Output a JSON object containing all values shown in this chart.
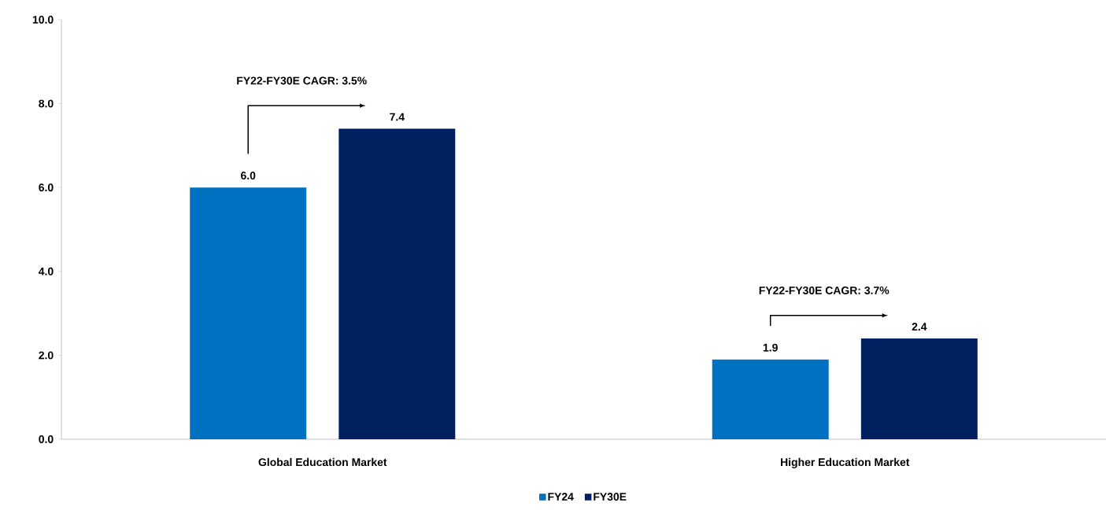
{
  "chart_data": {
    "type": "bar",
    "categories": [
      "Global Education Market",
      "Higher Education Market"
    ],
    "series": [
      {
        "name": "FY24",
        "color": "#0070c0",
        "values": [
          6.0,
          1.9
        ],
        "value_labels": [
          "6.0",
          "1.9"
        ]
      },
      {
        "name": "FY30E",
        "color": "#002060",
        "values": [
          7.4,
          2.4
        ],
        "value_labels": [
          "7.4",
          "2.4"
        ]
      }
    ],
    "ylim": [
      0,
      10
    ],
    "yticks": [
      {
        "value": 0,
        "label": "0.0"
      },
      {
        "value": 2,
        "label": "2.0"
      },
      {
        "value": 4,
        "label": "4.0"
      },
      {
        "value": 6,
        "label": "6.0"
      },
      {
        "value": 8,
        "label": "8.0"
      },
      {
        "value": 10,
        "label": "10.0"
      }
    ],
    "annotations": [
      "FY22-FY30E CAGR: 3.5%",
      "FY22-FY30E CAGR: 3.7%"
    ],
    "grid": false,
    "legend": "bottom"
  }
}
